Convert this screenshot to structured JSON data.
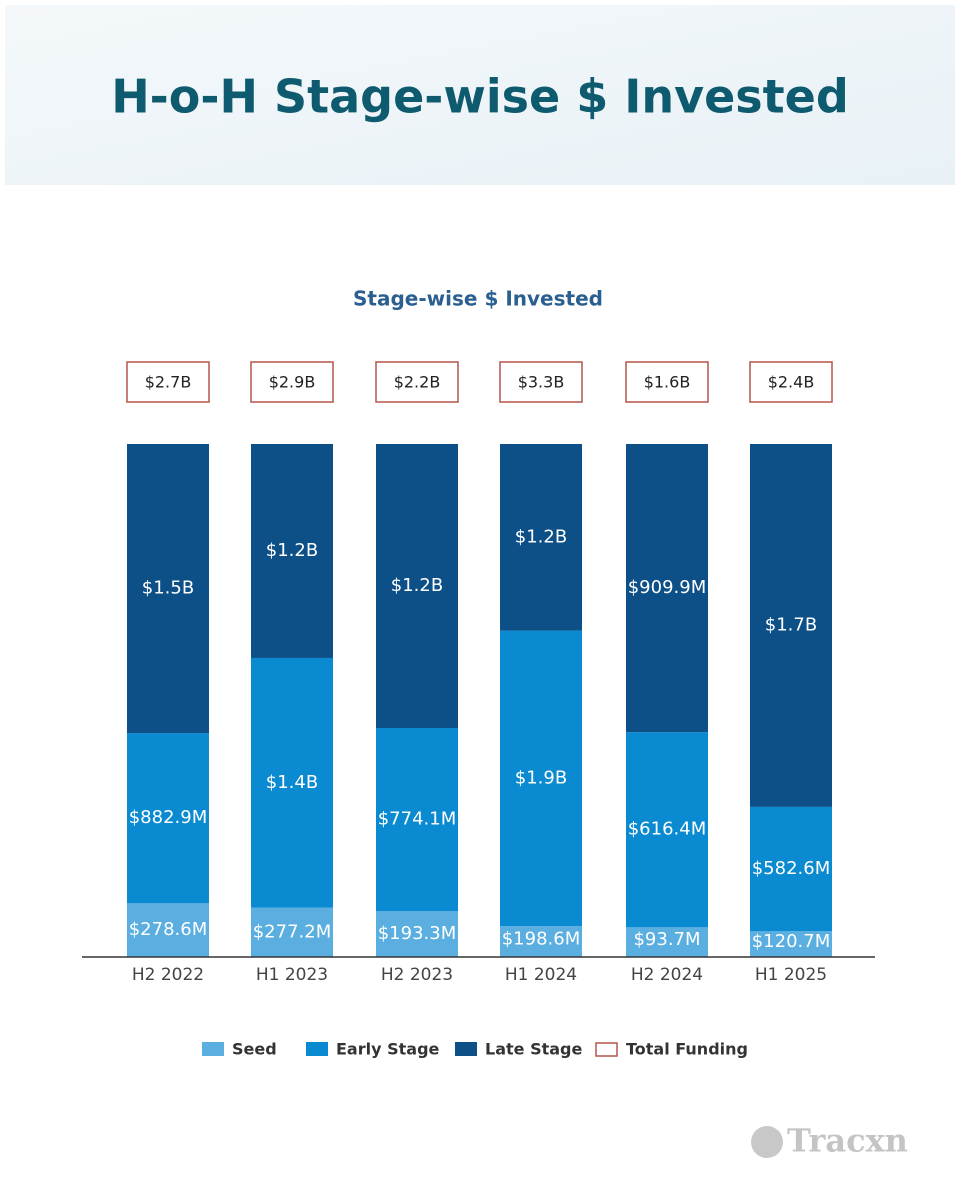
{
  "page_title": "H-o-H Stage-wise $ Invested",
  "watermark": "Tracxn",
  "chart_data": {
    "type": "bar",
    "stacking": "percent",
    "title": "Stage-wise $ Invested",
    "categories": [
      "H2 2022",
      "H1 2023",
      "H2 2023",
      "H1 2024",
      "H2 2024",
      "H1 2025"
    ],
    "series": [
      {
        "name": "Seed",
        "color": "#5aaee0",
        "values": [
          278.6,
          277.2,
          193.3,
          198.6,
          93.7,
          120.7
        ],
        "value_labels": [
          "$278.6M",
          "$277.2M",
          "$193.3M",
          "$198.6M",
          "$93.7M",
          "$120.7M"
        ]
      },
      {
        "name": "Early Stage",
        "color": "#0a8ad0",
        "values": [
          882.9,
          1400,
          774.1,
          1900,
          616.4,
          582.6
        ],
        "value_labels": [
          "$882.9M",
          "$1.4B",
          "$774.1M",
          "$1.9B",
          "$616.4M",
          "$582.6M"
        ]
      },
      {
        "name": "Late Stage",
        "color": "#0d4f87",
        "values": [
          1500,
          1200,
          1200,
          1200,
          909.9,
          1700
        ],
        "value_labels": [
          "$1.5B",
          "$1.2B",
          "$1.2B",
          "$1.2B",
          "$909.9M",
          "$1.7B"
        ]
      }
    ],
    "totals": {
      "name": "Total Funding",
      "color": "#b5554a",
      "values": [
        2700,
        2900,
        2200,
        3300,
        1600,
        2400
      ],
      "value_labels": [
        "$2.7B",
        "$2.9B",
        "$2.2B",
        "$3.3B",
        "$1.6B",
        "$2.4B"
      ]
    }
  }
}
